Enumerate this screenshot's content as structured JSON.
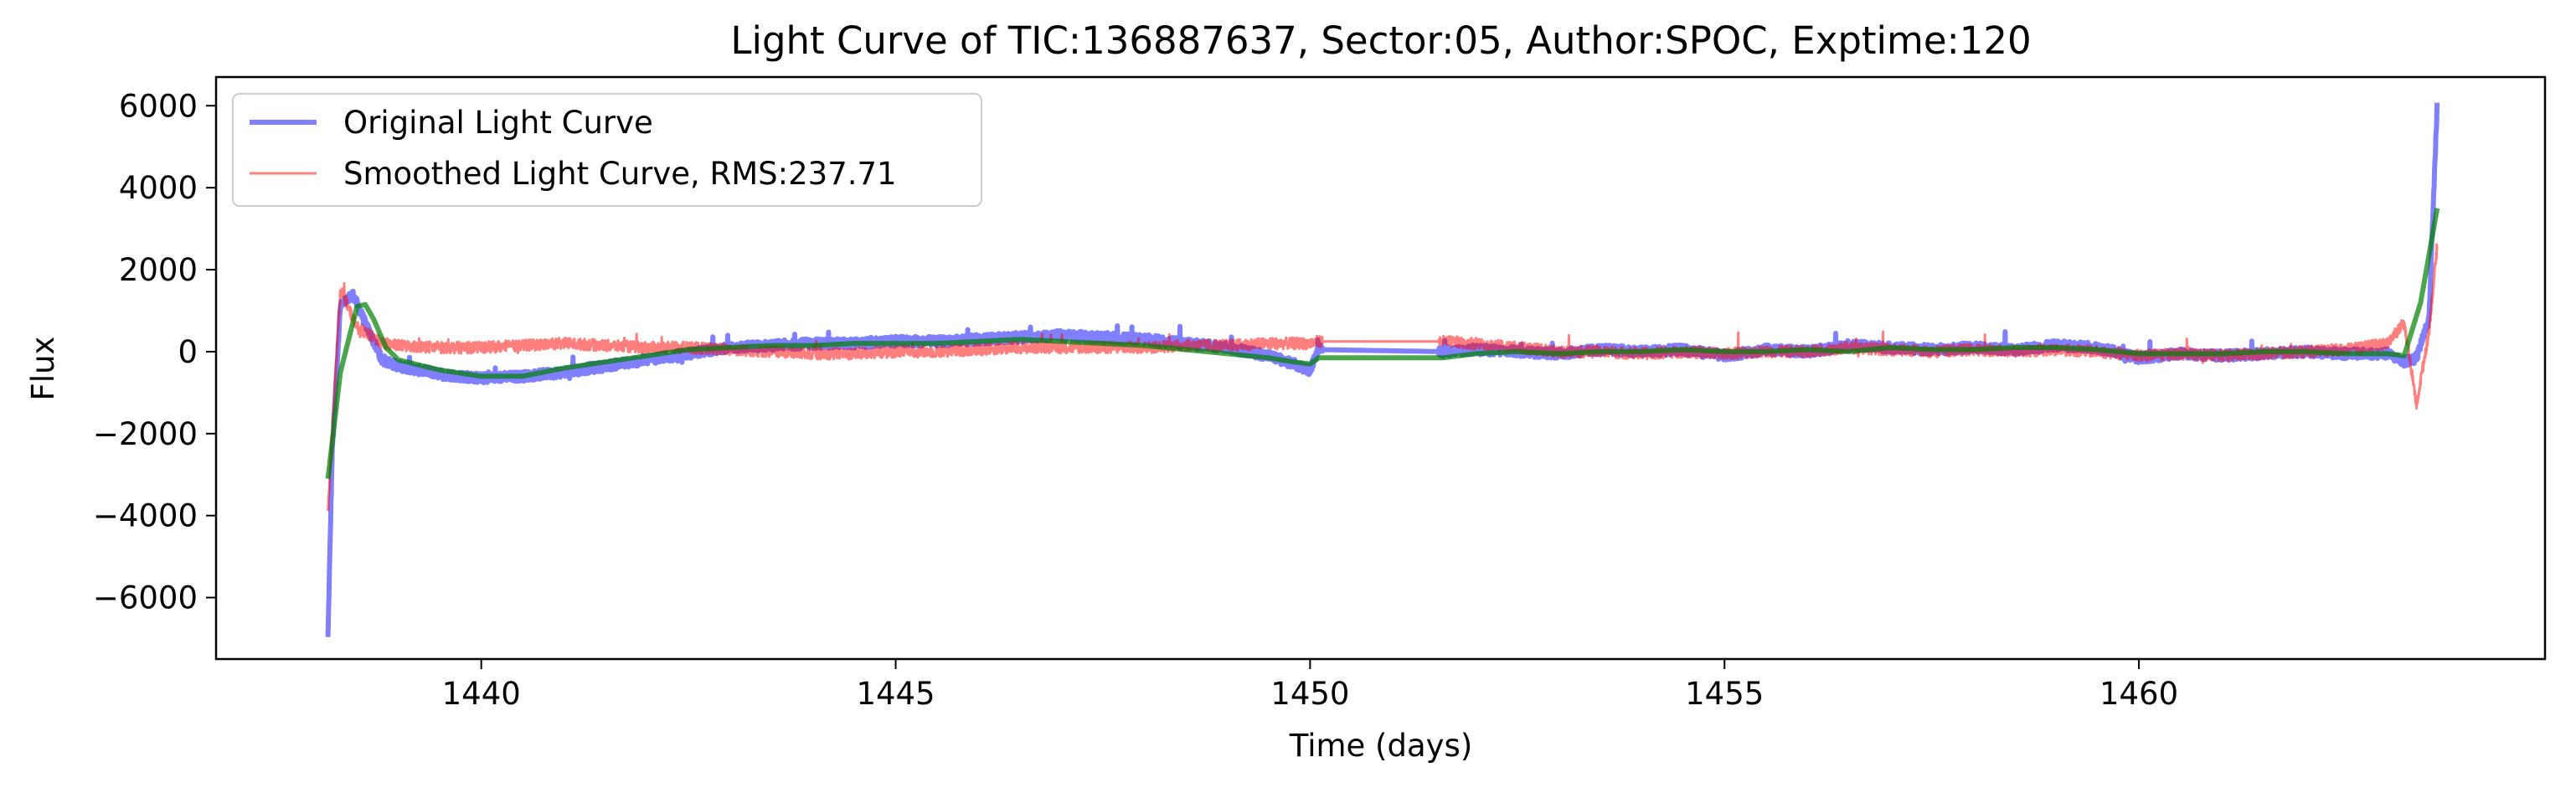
{
  "chart_data": {
    "type": "line",
    "title": "Light Curve of TIC:136887637, Sector:05, Author:SPOC, Exptime:120",
    "xlabel": "Time (days)",
    "ylabel": "Flux",
    "xlim": [
      1436.8,
      1464.9
    ],
    "ylim": [
      -7500,
      6700
    ],
    "xticks": [
      1440,
      1445,
      1450,
      1455,
      1460
    ],
    "yticks": [
      -6000,
      -4000,
      -2000,
      0,
      2000,
      4000,
      6000
    ],
    "xtick_labels": [
      "1440",
      "1445",
      "1450",
      "1455",
      "1460"
    ],
    "ytick_labels": [
      "−6000",
      "−4000",
      "−2000",
      "0",
      "2000",
      "4000",
      "6000"
    ],
    "grid": false,
    "legend_position": "top-left",
    "series": [
      {
        "name": "Original Light Curve",
        "color": "#0000ff",
        "opacity": 0.5,
        "noise": 120,
        "x": [
          1438.15,
          1438.2,
          1438.3,
          1438.45,
          1438.6,
          1438.8,
          1439.0,
          1439.5,
          1440.0,
          1440.5,
          1441.0,
          1441.5,
          1442.0,
          1442.5,
          1443.0,
          1443.5,
          1444.0,
          1444.5,
          1445.0,
          1445.5,
          1446.0,
          1446.5,
          1447.0,
          1447.5,
          1448.0,
          1448.5,
          1449.0,
          1449.5,
          1449.8,
          1450.0,
          1450.1,
          1451.6,
          1452.0,
          1452.5,
          1453.0,
          1453.5,
          1454.0,
          1454.5,
          1455.0,
          1455.5,
          1456.0,
          1456.5,
          1457.0,
          1457.5,
          1458.0,
          1458.5,
          1459.0,
          1459.5,
          1460.0,
          1460.5,
          1461.0,
          1461.5,
          1462.0,
          1462.5,
          1463.0,
          1463.2,
          1463.35,
          1463.5,
          1463.6
        ],
        "y": [
          -7000,
          -2500,
          1100,
          1400,
          700,
          -200,
          -350,
          -550,
          -650,
          -600,
          -500,
          -350,
          -200,
          -50,
          100,
          150,
          200,
          200,
          250,
          250,
          300,
          350,
          400,
          350,
          300,
          200,
          100,
          -100,
          -300,
          -450,
          50,
          0,
          50,
          0,
          -50,
          50,
          0,
          50,
          -100,
          50,
          0,
          150,
          100,
          50,
          100,
          50,
          150,
          100,
          -150,
          -50,
          -100,
          -50,
          0,
          -50,
          -50,
          -250,
          -150,
          800,
          6100
        ]
      },
      {
        "name": "Smoothed Light Curve, RMS:237.71",
        "color": "#ff0000",
        "opacity": 0.5,
        "noise": 140,
        "x": [
          1438.15,
          1438.3,
          1438.5,
          1438.8,
          1439.0,
          1439.5,
          1440.0,
          1440.5,
          1441.0,
          1441.5,
          1442.0,
          1442.5,
          1443.0,
          1443.5,
          1444.0,
          1444.5,
          1445.0,
          1445.5,
          1446.0,
          1446.5,
          1447.0,
          1447.5,
          1448.0,
          1448.5,
          1449.0,
          1449.5,
          1450.0,
          1450.1,
          1451.6,
          1452.0,
          1452.5,
          1453.0,
          1453.5,
          1454.0,
          1454.5,
          1455.0,
          1455.5,
          1456.0,
          1456.5,
          1457.0,
          1457.5,
          1458.0,
          1458.5,
          1459.0,
          1459.5,
          1460.0,
          1460.5,
          1461.0,
          1461.5,
          1462.0,
          1462.5,
          1463.0,
          1463.2,
          1463.35,
          1463.5,
          1463.6
        ],
        "y": [
          -3800,
          1500,
          600,
          200,
          150,
          100,
          100,
          150,
          200,
          150,
          100,
          100,
          50,
          0,
          -50,
          -50,
          0,
          0,
          50,
          100,
          100,
          100,
          100,
          150,
          150,
          200,
          200,
          250,
          250,
          200,
          100,
          0,
          0,
          -50,
          0,
          -50,
          0,
          0,
          100,
          50,
          0,
          50,
          0,
          50,
          0,
          -100,
          -50,
          -100,
          -50,
          0,
          50,
          200,
          700,
          -1300,
          500,
          2600
        ]
      },
      {
        "name": "",
        "color": "#008000",
        "opacity": 0.7,
        "noise": 0,
        "x": [
          1438.15,
          1438.3,
          1438.5,
          1438.6,
          1438.7,
          1438.85,
          1439.0,
          1439.5,
          1440.0,
          1440.5,
          1441.0,
          1441.5,
          1442.0,
          1442.5,
          1443.0,
          1443.5,
          1444.0,
          1444.5,
          1445.0,
          1445.5,
          1446.0,
          1446.5,
          1447.0,
          1447.5,
          1448.0,
          1448.5,
          1449.0,
          1449.5,
          1449.8,
          1450.0,
          1450.1,
          1451.6,
          1452.0,
          1452.5,
          1453.0,
          1453.5,
          1454.0,
          1454.5,
          1455.0,
          1455.5,
          1456.0,
          1456.5,
          1457.0,
          1457.5,
          1458.0,
          1458.5,
          1459.0,
          1459.5,
          1460.0,
          1460.5,
          1461.0,
          1461.5,
          1462.0,
          1462.5,
          1463.0,
          1463.2,
          1463.4,
          1463.6
        ],
        "y": [
          -3100,
          -500,
          1100,
          1150,
          800,
          100,
          -200,
          -450,
          -600,
          -600,
          -400,
          -250,
          -100,
          50,
          100,
          150,
          150,
          200,
          200,
          200,
          250,
          300,
          250,
          200,
          150,
          50,
          -50,
          -150,
          -250,
          -300,
          -150,
          -150,
          -50,
          0,
          -50,
          0,
          0,
          50,
          0,
          0,
          50,
          0,
          100,
          50,
          50,
          100,
          100,
          50,
          -50,
          -50,
          -50,
          0,
          0,
          -50,
          -50,
          -100,
          1200,
          3500
        ]
      }
    ]
  }
}
